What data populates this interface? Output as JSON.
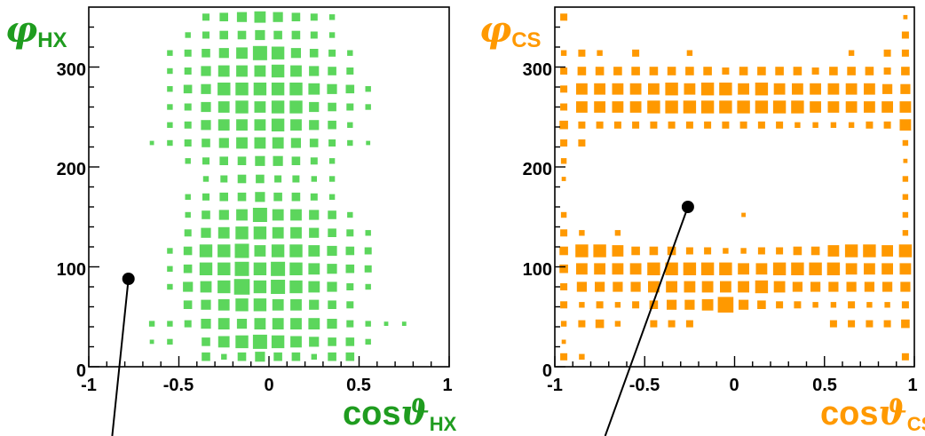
{
  "chart_data": [
    {
      "type": "heatmap",
      "subtype": "box-2d-histogram",
      "ylabel_symbol": "φ",
      "ylabel_sub": "HX",
      "xlabel_main": "cos",
      "xlabel_symbol": "ϑ",
      "xlabel_sub": "HX",
      "xlim": [
        -1,
        1
      ],
      "ylim": [
        0,
        360
      ],
      "xticks": [
        "-1",
        "-0.5",
        "0",
        "0.5",
        "1"
      ],
      "xtick_values": [
        -1,
        -0.5,
        0,
        0.5,
        1
      ],
      "yticks": [
        "0",
        "100",
        "200",
        "300"
      ],
      "ytick_values": [
        0,
        100,
        200,
        300
      ],
      "color": "#5cd65c",
      "label_color": "#1f9c1f",
      "grid": false,
      "marker_point": [
        -0.78,
        88
      ],
      "line_to": [
        -0.87,
        -75
      ],
      "x_bins": [
        -0.95,
        -0.85,
        -0.75,
        -0.65,
        -0.55,
        -0.45,
        -0.35,
        -0.25,
        -0.15,
        -0.05,
        0.05,
        0.15,
        0.25,
        0.35,
        0.45,
        0.55,
        0.65,
        0.75,
        0.85,
        0.95
      ],
      "y_bins": [
        10,
        25,
        43,
        62,
        80,
        98,
        116,
        134,
        152,
        170,
        188,
        206,
        224,
        242,
        260,
        278,
        296,
        314,
        332,
        350
      ],
      "cells": [
        [
          0,
          0,
          0,
          0,
          0,
          0,
          6,
          4,
          6,
          7,
          6,
          6,
          4,
          6,
          6,
          0,
          0,
          0,
          0,
          0
        ],
        [
          0,
          0,
          0,
          3,
          4,
          0,
          6,
          8,
          9,
          10,
          9,
          8,
          7,
          6,
          6,
          4,
          0,
          0,
          0,
          0
        ],
        [
          0,
          0,
          0,
          4,
          4,
          5,
          7,
          8,
          7,
          8,
          8,
          8,
          8,
          7,
          5,
          4,
          3,
          3,
          0,
          0
        ],
        [
          0,
          0,
          0,
          0,
          0,
          6,
          7,
          8,
          9,
          9,
          8,
          8,
          7,
          6,
          5,
          0,
          0,
          0,
          0,
          0
        ],
        [
          0,
          0,
          0,
          0,
          4,
          7,
          8,
          9,
          11,
          9,
          10,
          9,
          8,
          7,
          5,
          4,
          0,
          0,
          0,
          0
        ],
        [
          0,
          0,
          0,
          0,
          4,
          6,
          9,
          9,
          10,
          9,
          10,
          9,
          8,
          7,
          6,
          5,
          0,
          0,
          0,
          0
        ],
        [
          0,
          0,
          0,
          0,
          4,
          6,
          9,
          9,
          10,
          8,
          9,
          9,
          8,
          7,
          6,
          5,
          0,
          0,
          0,
          0
        ],
        [
          0,
          0,
          0,
          0,
          0,
          5,
          7,
          8,
          9,
          9,
          8,
          8,
          7,
          6,
          5,
          4,
          0,
          0,
          0,
          0
        ],
        [
          0,
          0,
          0,
          0,
          0,
          4,
          6,
          7,
          8,
          10,
          8,
          8,
          7,
          6,
          4,
          0,
          0,
          0,
          0,
          0
        ],
        [
          0,
          0,
          0,
          0,
          0,
          4,
          5,
          6,
          6,
          7,
          6,
          6,
          5,
          4,
          0,
          0,
          0,
          0,
          0,
          0
        ],
        [
          0,
          0,
          0,
          0,
          0,
          0,
          4,
          5,
          6,
          6,
          5,
          5,
          4,
          4,
          0,
          0,
          0,
          0,
          0,
          0
        ],
        [
          0,
          0,
          0,
          0,
          0,
          4,
          5,
          6,
          6,
          7,
          7,
          6,
          5,
          4,
          0,
          0,
          0,
          0,
          0,
          0
        ],
        [
          0,
          0,
          0,
          3,
          4,
          5,
          6,
          7,
          8,
          8,
          8,
          7,
          6,
          5,
          4,
          3,
          0,
          0,
          0,
          0
        ],
        [
          0,
          0,
          0,
          0,
          4,
          5,
          7,
          8,
          8,
          8,
          9,
          8,
          7,
          6,
          4,
          0,
          0,
          0,
          0,
          0
        ],
        [
          0,
          0,
          0,
          0,
          4,
          5,
          7,
          8,
          9,
          8,
          9,
          9,
          7,
          6,
          5,
          4,
          0,
          0,
          0,
          0
        ],
        [
          0,
          0,
          0,
          0,
          4,
          6,
          7,
          9,
          9,
          9,
          9,
          9,
          8,
          7,
          6,
          4,
          0,
          0,
          0,
          0
        ],
        [
          0,
          0,
          0,
          0,
          4,
          5,
          7,
          8,
          8,
          8,
          9,
          8,
          7,
          6,
          5,
          0,
          0,
          0,
          0,
          0
        ],
        [
          0,
          0,
          0,
          0,
          4,
          5,
          6,
          7,
          8,
          10,
          9,
          7,
          6,
          5,
          4,
          0,
          0,
          0,
          0,
          0
        ],
        [
          0,
          0,
          0,
          0,
          0,
          4,
          5,
          6,
          6,
          7,
          6,
          6,
          5,
          4,
          0,
          0,
          0,
          0,
          0,
          0
        ],
        [
          0,
          0,
          0,
          0,
          0,
          0,
          5,
          6,
          7,
          8,
          7,
          6,
          5,
          4,
          0,
          0,
          0,
          0,
          0,
          0
        ]
      ]
    },
    {
      "type": "heatmap",
      "subtype": "box-2d-histogram",
      "ylabel_symbol": "φ",
      "ylabel_sub": "CS",
      "xlabel_main": "cos",
      "xlabel_symbol": "ϑ",
      "xlabel_sub": "CS",
      "xlim": [
        -1,
        1
      ],
      "ylim": [
        0,
        360
      ],
      "xticks": [
        "-1",
        "-0.5",
        "0",
        "0.5",
        "1"
      ],
      "xtick_values": [
        -1,
        -0.5,
        0,
        0.5,
        1
      ],
      "yticks": [
        "0",
        "100",
        "200",
        "300"
      ],
      "ytick_values": [
        0,
        100,
        200,
        300
      ],
      "color": "#ff9900",
      "label_color": "#ff9900",
      "grid": false,
      "marker_point": [
        -0.26,
        160
      ],
      "line_to": [
        -0.72,
        -75
      ],
      "x_bins": [
        -0.95,
        -0.85,
        -0.75,
        -0.65,
        -0.55,
        -0.45,
        -0.35,
        -0.25,
        -0.15,
        -0.05,
        0.05,
        0.15,
        0.25,
        0.35,
        0.45,
        0.55,
        0.65,
        0.75,
        0.85,
        0.95
      ],
      "y_bins": [
        10,
        25,
        43,
        62,
        80,
        98,
        116,
        134,
        152,
        170,
        188,
        206,
        224,
        242,
        260,
        278,
        296,
        314,
        332,
        350
      ],
      "cells": [
        [
          5,
          4,
          0,
          0,
          0,
          0,
          0,
          0,
          0,
          0,
          0,
          0,
          0,
          0,
          0,
          0,
          0,
          0,
          0,
          5
        ],
        [
          3,
          0,
          0,
          0,
          0,
          0,
          0,
          0,
          0,
          0,
          0,
          0,
          0,
          0,
          0,
          0,
          0,
          0,
          0,
          0
        ],
        [
          4,
          5,
          6,
          4,
          0,
          5,
          5,
          5,
          0,
          0,
          0,
          0,
          0,
          0,
          0,
          5,
          5,
          5,
          5,
          6
        ],
        [
          5,
          4,
          5,
          4,
          5,
          6,
          7,
          7,
          8,
          11,
          7,
          6,
          5,
          5,
          4,
          4,
          5,
          4,
          4,
          5
        ],
        [
          5,
          7,
          7,
          7,
          7,
          8,
          8,
          8,
          8,
          8,
          8,
          9,
          8,
          7,
          7,
          7,
          7,
          7,
          7,
          7
        ],
        [
          6,
          8,
          8,
          8,
          8,
          9,
          9,
          9,
          9,
          9,
          8,
          8,
          9,
          9,
          9,
          9,
          8,
          8,
          8,
          8
        ],
        [
          6,
          9,
          9,
          8,
          6,
          6,
          6,
          5,
          5,
          4,
          4,
          5,
          5,
          6,
          6,
          8,
          9,
          9,
          8,
          9
        ],
        [
          5,
          4,
          0,
          4,
          0,
          0,
          0,
          0,
          0,
          0,
          0,
          0,
          0,
          0,
          0,
          0,
          0,
          0,
          0,
          4
        ],
        [
          4,
          0,
          0,
          0,
          0,
          0,
          0,
          0,
          0,
          0,
          3,
          0,
          0,
          0,
          0,
          0,
          0,
          0,
          0,
          4
        ],
        [
          0,
          0,
          0,
          0,
          0,
          0,
          0,
          0,
          0,
          0,
          0,
          0,
          0,
          0,
          0,
          0,
          0,
          0,
          0,
          4
        ],
        [
          3,
          0,
          0,
          0,
          0,
          0,
          0,
          0,
          0,
          0,
          0,
          0,
          0,
          0,
          0,
          0,
          0,
          0,
          0,
          4
        ],
        [
          4,
          0,
          0,
          0,
          0,
          0,
          0,
          0,
          0,
          0,
          0,
          0,
          0,
          0,
          0,
          0,
          0,
          0,
          0,
          3
        ],
        [
          5,
          5,
          0,
          0,
          0,
          0,
          0,
          0,
          0,
          0,
          0,
          0,
          0,
          0,
          0,
          0,
          0,
          0,
          0,
          4
        ],
        [
          6,
          5,
          5,
          5,
          5,
          5,
          5,
          5,
          5,
          5,
          5,
          5,
          5,
          4,
          4,
          4,
          4,
          5,
          5,
          8
        ],
        [
          5,
          8,
          8,
          8,
          8,
          9,
          9,
          9,
          9,
          9,
          9,
          9,
          9,
          9,
          8,
          8,
          8,
          8,
          8,
          8
        ],
        [
          5,
          8,
          8,
          8,
          8,
          8,
          9,
          8,
          9,
          9,
          8,
          9,
          8,
          8,
          8,
          8,
          8,
          8,
          7,
          7
        ],
        [
          5,
          6,
          6,
          6,
          6,
          6,
          6,
          6,
          6,
          5,
          6,
          6,
          6,
          6,
          5,
          6,
          6,
          6,
          5,
          6
        ],
        [
          4,
          5,
          4,
          0,
          5,
          0,
          0,
          4,
          0,
          0,
          0,
          0,
          0,
          0,
          0,
          0,
          4,
          0,
          5,
          5
        ],
        [
          0,
          0,
          0,
          0,
          0,
          0,
          0,
          0,
          0,
          0,
          0,
          0,
          0,
          0,
          0,
          0,
          0,
          0,
          0,
          5
        ],
        [
          5,
          0,
          0,
          0,
          0,
          0,
          0,
          0,
          0,
          0,
          0,
          0,
          0,
          0,
          0,
          0,
          0,
          0,
          0,
          3
        ]
      ]
    }
  ]
}
